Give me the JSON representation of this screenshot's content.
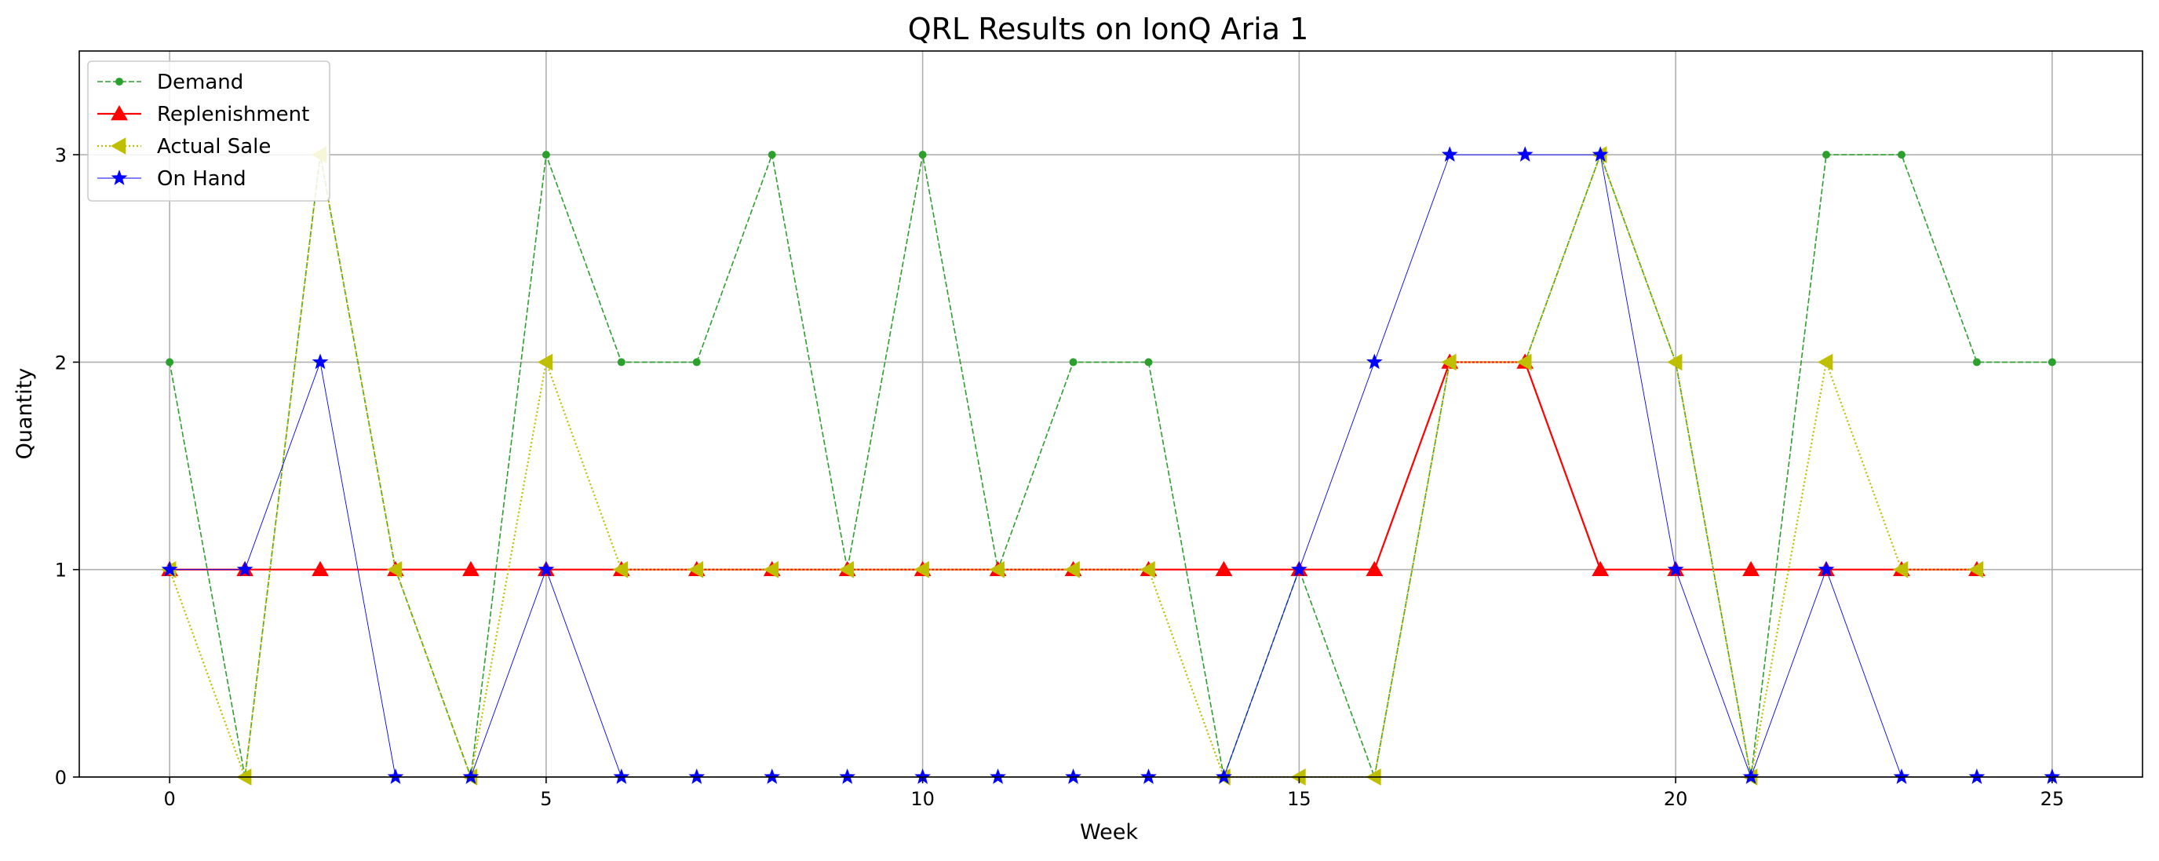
{
  "chart_data": {
    "type": "line",
    "title": "QRL Results on IonQ Aria 1",
    "xlabel": "Week",
    "ylabel": "Quantity",
    "xlim": [
      -1.2,
      26.2
    ],
    "ylim": [
      0,
      3.5
    ],
    "xticks": [
      0,
      5,
      10,
      15,
      20,
      25
    ],
    "yticks": [
      0,
      1,
      2,
      3
    ],
    "grid": true,
    "legend_position": "top-left",
    "series": [
      {
        "name": "Demand",
        "color": "#2ca02c",
        "marker": "dot",
        "line_style": "dashed",
        "x": [
          0,
          1,
          2,
          3,
          4,
          5,
          6,
          7,
          8,
          9,
          10,
          11,
          12,
          13,
          14,
          15,
          16,
          17,
          18,
          19,
          20,
          21,
          22,
          23,
          24,
          25
        ],
        "values": [
          2,
          0,
          3,
          1,
          0,
          3,
          2,
          2,
          3,
          1,
          3,
          1,
          2,
          2,
          0,
          1,
          0,
          2,
          2,
          3,
          2,
          0,
          3,
          3,
          2,
          2
        ]
      },
      {
        "name": "Replenishment",
        "color": "#ff0000",
        "marker": "triangle-up",
        "line_style": "solid",
        "x": [
          0,
          1,
          2,
          3,
          4,
          5,
          6,
          7,
          8,
          9,
          10,
          11,
          12,
          13,
          14,
          15,
          16,
          17,
          18,
          19,
          20,
          21,
          22,
          23,
          24
        ],
        "values": [
          1,
          1,
          1,
          1,
          1,
          1,
          1,
          1,
          1,
          1,
          1,
          1,
          1,
          1,
          1,
          1,
          1,
          2,
          2,
          1,
          1,
          1,
          1,
          1,
          1
        ]
      },
      {
        "name": "Actual Sale",
        "color": "#bfbf00",
        "marker": "triangle-left",
        "line_style": "dotted",
        "x": [
          0,
          1,
          2,
          3,
          4,
          5,
          6,
          7,
          8,
          9,
          10,
          11,
          12,
          13,
          14,
          15,
          16,
          17,
          18,
          19,
          20,
          21,
          22,
          23,
          24
        ],
        "values": [
          1,
          0,
          3,
          1,
          0,
          2,
          1,
          1,
          1,
          1,
          1,
          1,
          1,
          1,
          0,
          0,
          0,
          2,
          2,
          3,
          2,
          0,
          2,
          1,
          1
        ]
      },
      {
        "name": "On Hand",
        "color": "#0000ff",
        "marker": "star",
        "line_style": "solid-thin",
        "x": [
          0,
          1,
          2,
          3,
          4,
          5,
          6,
          7,
          8,
          9,
          10,
          11,
          12,
          13,
          14,
          15,
          16,
          17,
          18,
          19,
          20,
          21,
          22,
          23,
          24,
          25
        ],
        "values": [
          1,
          1,
          2,
          0,
          0,
          1,
          0,
          0,
          0,
          0,
          0,
          0,
          0,
          0,
          0,
          1,
          2,
          3,
          3,
          3,
          1,
          0,
          1,
          0,
          0,
          0
        ]
      }
    ]
  }
}
